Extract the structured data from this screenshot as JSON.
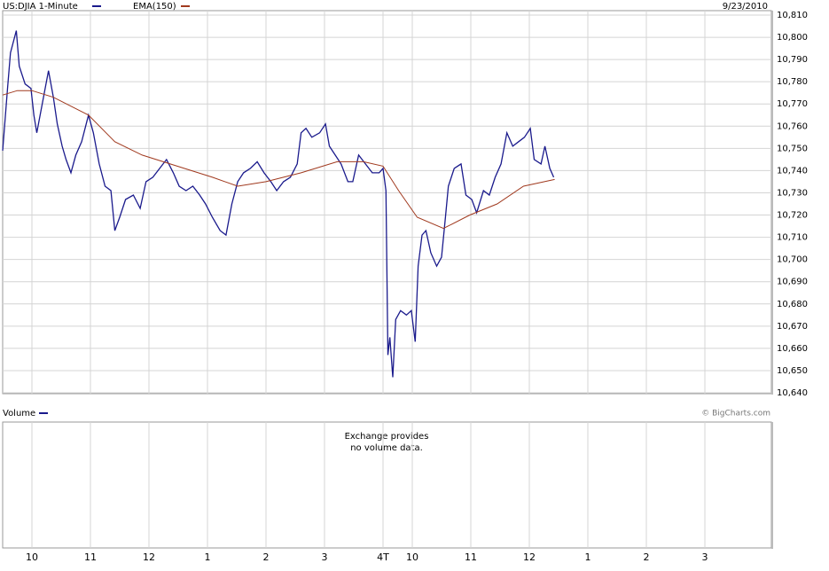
{
  "chart_data": {
    "type": "line",
    "title": "US:DJIA 1-Minute",
    "date": "9/23/2010",
    "credit": "© BigCharts.com",
    "xlim": [
      0,
      790
    ],
    "ylim": [
      10640,
      10812
    ],
    "xticks": [
      {
        "value": 30,
        "label": "10"
      },
      {
        "value": 90,
        "label": "11"
      },
      {
        "value": 150,
        "label": "12"
      },
      {
        "value": 210,
        "label": "1"
      },
      {
        "value": 270,
        "label": "2"
      },
      {
        "value": 330,
        "label": "3"
      },
      {
        "value": 390,
        "label": "4T"
      },
      {
        "value": 420,
        "label": "10"
      },
      {
        "value": 480,
        "label": "11"
      },
      {
        "value": 540,
        "label": "12"
      },
      {
        "value": 600,
        "label": "1"
      },
      {
        "value": 660,
        "label": "2"
      },
      {
        "value": 720,
        "label": "3"
      }
    ],
    "yticks": [
      {
        "value": 10640,
        "label": "10,640"
      },
      {
        "value": 10650,
        "label": "10,650"
      },
      {
        "value": 10660,
        "label": "10,660"
      },
      {
        "value": 10670,
        "label": "10,670"
      },
      {
        "value": 10680,
        "label": "10,680"
      },
      {
        "value": 10690,
        "label": "10,690"
      },
      {
        "value": 10700,
        "label": "10,700"
      },
      {
        "value": 10710,
        "label": "10,710"
      },
      {
        "value": 10720,
        "label": "10,720"
      },
      {
        "value": 10730,
        "label": "10,730"
      },
      {
        "value": 10740,
        "label": "10,740"
      },
      {
        "value": 10750,
        "label": "10,750"
      },
      {
        "value": 10760,
        "label": "10,760"
      },
      {
        "value": 10770,
        "label": "10,770"
      },
      {
        "value": 10780,
        "label": "10,780"
      },
      {
        "value": 10790,
        "label": "10,790"
      },
      {
        "value": 10800,
        "label": "10,800"
      },
      {
        "value": 10810,
        "label": "10,810"
      }
    ],
    "grid": true,
    "series": [
      {
        "name": "US:DJIA 1-Minute",
        "color": "#1a1a8c",
        "x": [
          0,
          5,
          8,
          14,
          17,
          23,
          29,
          32,
          35,
          41,
          47,
          52,
          56,
          61,
          65,
          70,
          75,
          81,
          88,
          93,
          99,
          105,
          111,
          115,
          120,
          126,
          134,
          141,
          147,
          154,
          161,
          168,
          175,
          181,
          188,
          195,
          202,
          208,
          215,
          223,
          229,
          235,
          241,
          247,
          254,
          261,
          268,
          275,
          281,
          288,
          295,
          302,
          306,
          311,
          317,
          325,
          331,
          335,
          341,
          347,
          354,
          359,
          365,
          372,
          379,
          386,
          390,
          393,
          395,
          397,
          400,
          403,
          408,
          414,
          419,
          423,
          426,
          430,
          434,
          439,
          445,
          450,
          454,
          457,
          463,
          470,
          475,
          481,
          486,
          493,
          499,
          505,
          511,
          517,
          523,
          529,
          535,
          541,
          545,
          552,
          556,
          561,
          565
        ],
        "values": [
          10749,
          10777,
          10793,
          10803,
          10787,
          10779,
          10777,
          10765,
          10757,
          10771,
          10785,
          10773,
          10761,
          10751,
          10745,
          10739,
          10747,
          10753,
          10765,
          10757,
          10743,
          10733,
          10731,
          10713,
          10719,
          10727,
          10729,
          10723,
          10735,
          10737,
          10741,
          10745,
          10739,
          10733,
          10731,
          10733,
          10729,
          10725,
          10719,
          10713,
          10711,
          10725,
          10735,
          10739,
          10741,
          10744,
          10739,
          10735,
          10731,
          10735,
          10737,
          10743,
          10757,
          10759,
          10755,
          10757,
          10761,
          10751,
          10747,
          10743,
          10735,
          10735,
          10747,
          10743,
          10739,
          10739,
          10741,
          10731,
          10657,
          10665,
          10647,
          10673,
          10677,
          10675,
          10677,
          10663,
          10697,
          10711,
          10713,
          10703,
          10697,
          10701,
          10719,
          10733,
          10741,
          10743,
          10729,
          10727,
          10721,
          10731,
          10729,
          10737,
          10743,
          10757,
          10751,
          10753,
          10755,
          10759,
          10745,
          10743,
          10751,
          10741,
          10737
        ]
      },
      {
        "name": "EMA(150)",
        "color": "#a0391e",
        "x": [
          0,
          15,
          30,
          52,
          88,
          115,
          143,
          179,
          215,
          241,
          270,
          306,
          343,
          370,
          390,
          406,
          425,
          452,
          479,
          507,
          534,
          566
        ],
        "values": [
          10774,
          10776,
          10776,
          10773,
          10765,
          10753,
          10747,
          10742,
          10737,
          10733,
          10735,
          10739,
          10744,
          10744,
          10742,
          10731,
          10719,
          10714,
          10720,
          10725,
          10733,
          10736
        ]
      }
    ],
    "volume_panel": {
      "title": "Volume",
      "color": "#1a1a8c",
      "message": [
        "Exchange provides",
        "no volume data."
      ]
    }
  }
}
